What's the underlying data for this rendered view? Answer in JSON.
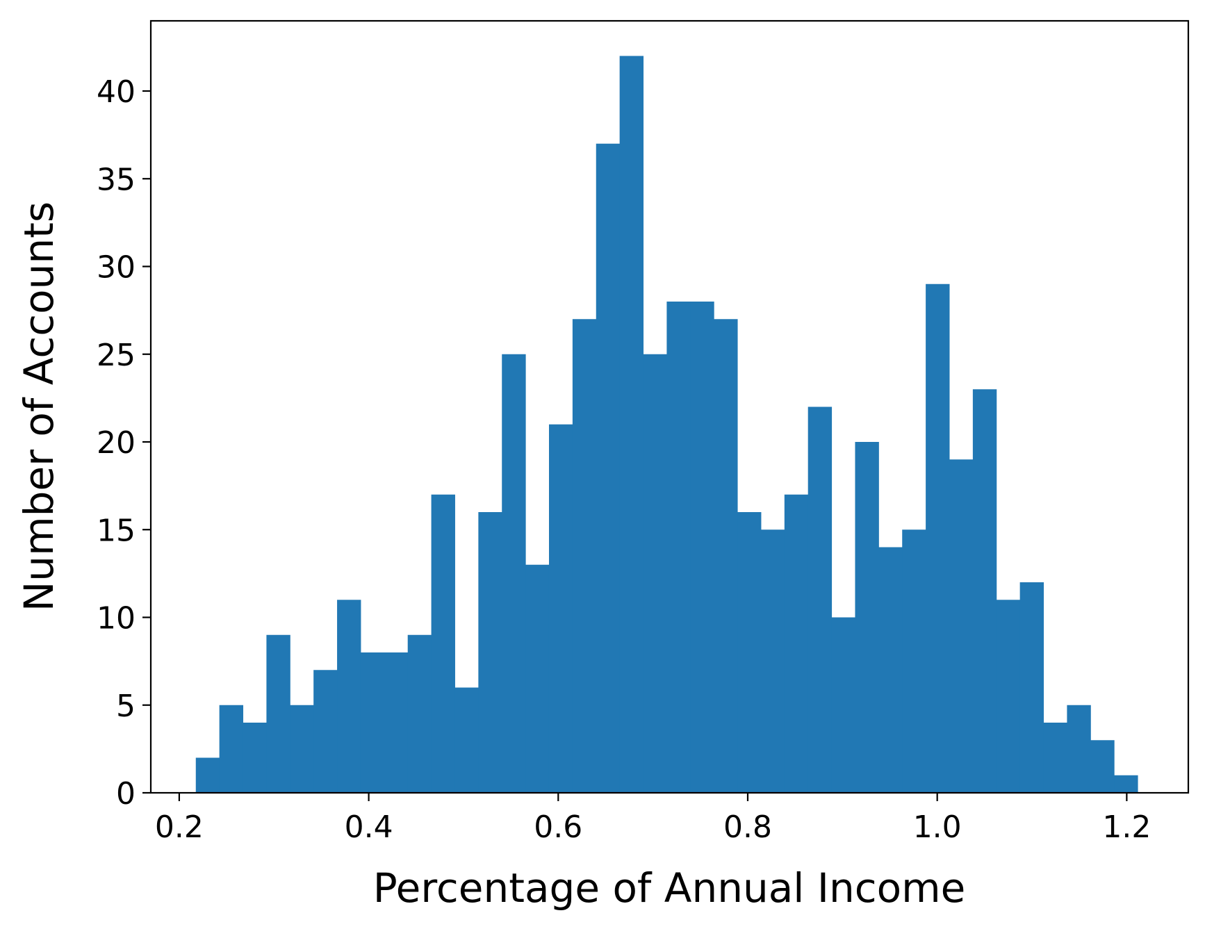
{
  "chart_data": {
    "type": "bar",
    "subtype": "histogram",
    "title": "",
    "xlabel": "Percentage of Annual Income",
    "ylabel": "Number of Accounts",
    "xlim": [
      0.17,
      1.265
    ],
    "ylim": [
      0,
      44
    ],
    "grid": false,
    "legend": "none",
    "bar_color": "#2178b4",
    "bin_start": 0.2175,
    "bin_width": 0.02485,
    "values": [
      2,
      5,
      4,
      9,
      5,
      7,
      11,
      8,
      8,
      9,
      17,
      6,
      16,
      25,
      13,
      21,
      27,
      37,
      42,
      25,
      28,
      28,
      27,
      16,
      15,
      17,
      22,
      10,
      20,
      14,
      15,
      29,
      19,
      23,
      11,
      12,
      4,
      5,
      3,
      1
    ],
    "x_ticks": [
      {
        "value": 0.2,
        "label": "0.2"
      },
      {
        "value": 0.4,
        "label": "0.4"
      },
      {
        "value": 0.6,
        "label": "0.6"
      },
      {
        "value": 0.8,
        "label": "0.8"
      },
      {
        "value": 1.0,
        "label": "1.0"
      },
      {
        "value": 1.2,
        "label": "1.2"
      }
    ],
    "y_ticks": [
      {
        "value": 0,
        "label": "0"
      },
      {
        "value": 5,
        "label": "5"
      },
      {
        "value": 10,
        "label": "10"
      },
      {
        "value": 15,
        "label": "15"
      },
      {
        "value": 20,
        "label": "20"
      },
      {
        "value": 25,
        "label": "25"
      },
      {
        "value": 30,
        "label": "30"
      },
      {
        "value": 35,
        "label": "35"
      },
      {
        "value": 40,
        "label": "40"
      }
    ]
  }
}
